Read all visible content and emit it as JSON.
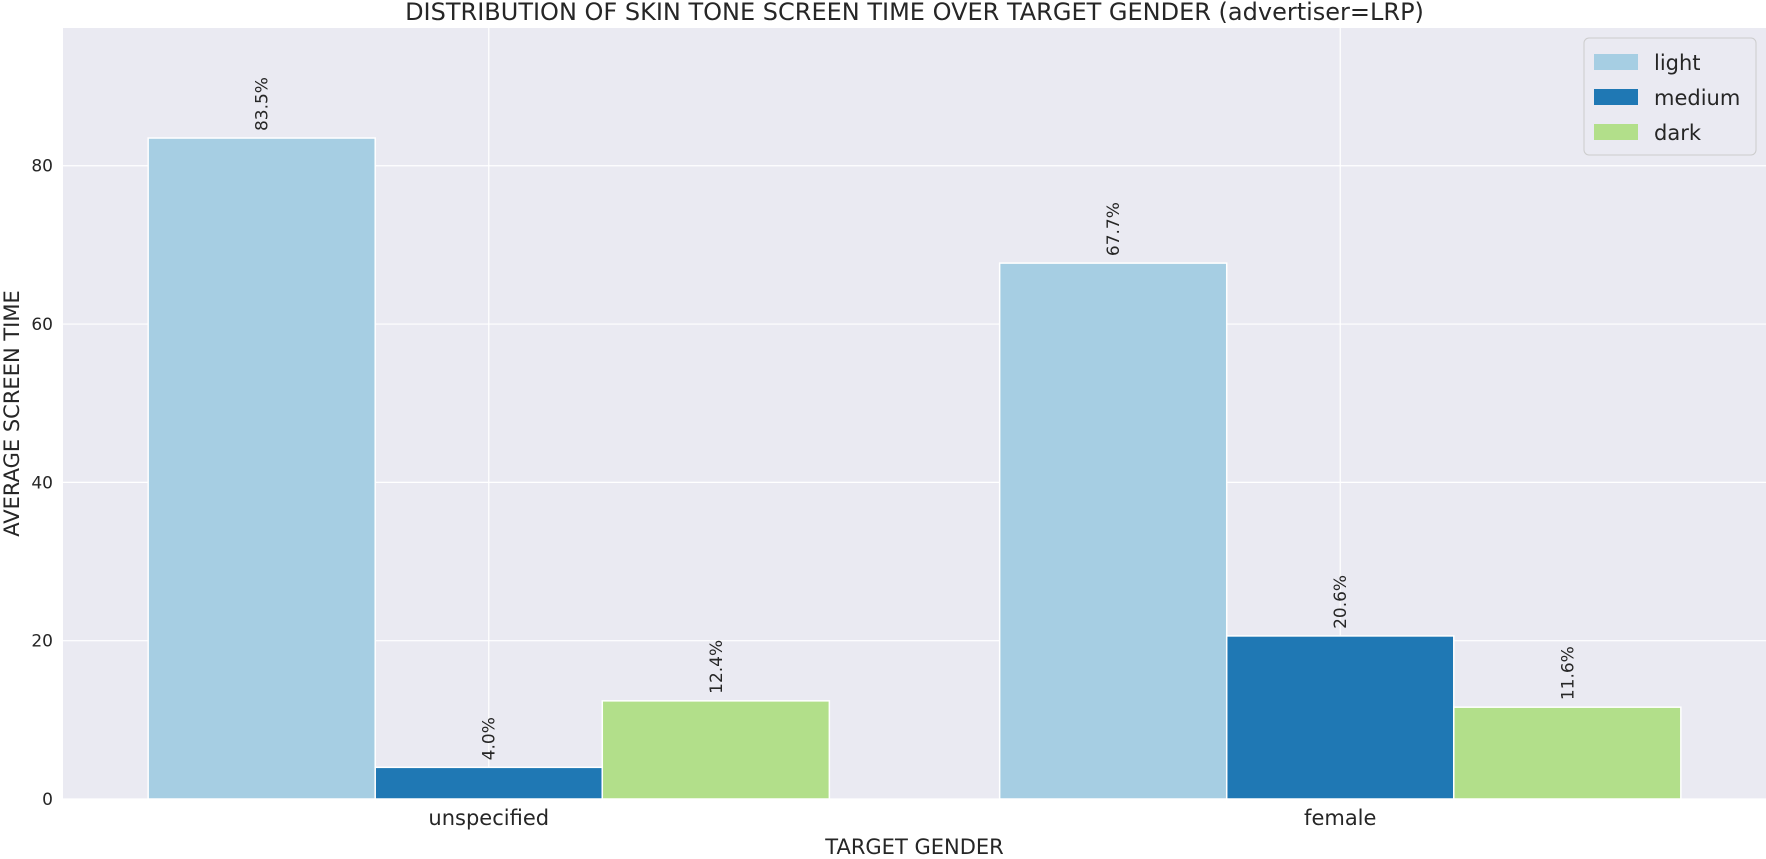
{
  "chart_data": {
    "type": "bar",
    "title": "DISTRIBUTION OF SKIN TONE SCREEN TIME OVER TARGET GENDER (advertiser=LRP)",
    "xlabel": "TARGET GENDER",
    "ylabel": "AVERAGE SCREEN TIME",
    "categories": [
      "unspecified",
      "female"
    ],
    "series": [
      {
        "name": "light",
        "color": "#a6cee3",
        "values": [
          83.5,
          67.7
        ],
        "labels": [
          "83.5%",
          "67.7%"
        ]
      },
      {
        "name": "medium",
        "color": "#1f78b4",
        "values": [
          4.0,
          20.6
        ],
        "labels": [
          "4.0%",
          "20.6%"
        ]
      },
      {
        "name": "dark",
        "color": "#b2df8a",
        "values": [
          12.4,
          11.6
        ],
        "labels": [
          "12.4%",
          "11.6%"
        ]
      }
    ],
    "ylim": [
      0,
      97.4
    ],
    "yticks": [
      0,
      20,
      40,
      60,
      80
    ],
    "grid": true,
    "legend_position": "top-right",
    "background_color": "#eaeaf2"
  }
}
